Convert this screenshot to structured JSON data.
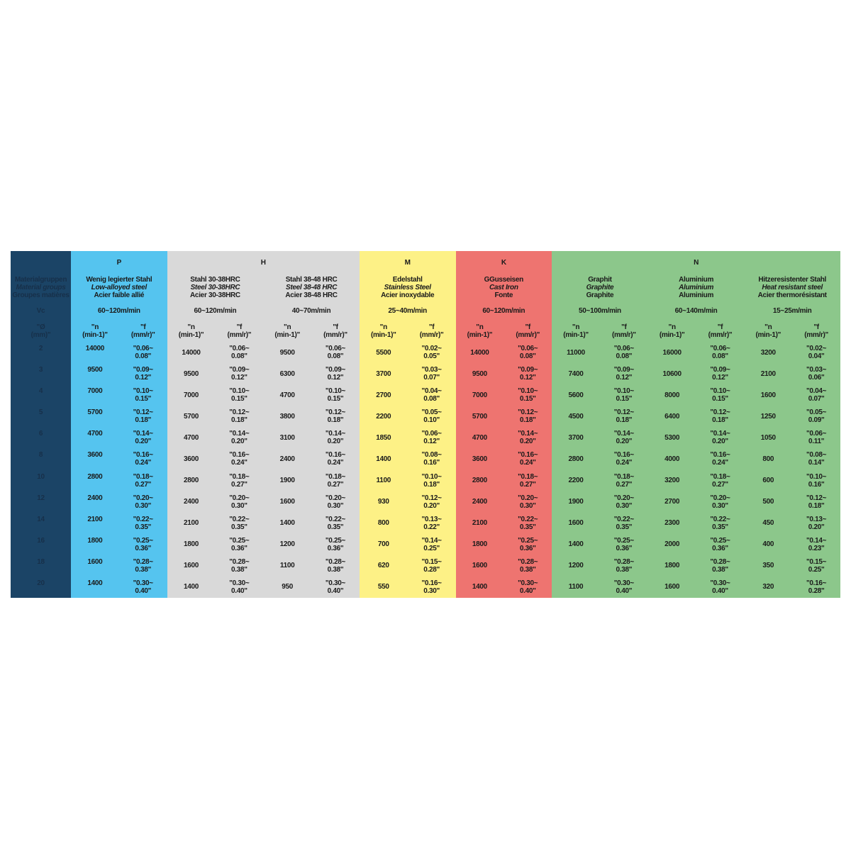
{
  "label_column": {
    "group_labels": [
      "Materialgruppen",
      "Material groups",
      "Groupes matières"
    ],
    "vc_label": "Vc",
    "diameter_label": "\"Ø\n(mm)\"",
    "diameters": [
      "2",
      "3",
      "4",
      "5",
      "6",
      "8",
      "10",
      "12",
      "14",
      "16",
      "18",
      "20"
    ]
  },
  "group_letters": [
    {
      "letter": "P",
      "span": 1
    },
    {
      "letter": "H",
      "span": 2
    },
    {
      "letter": "M",
      "span": 1
    },
    {
      "letter": "K",
      "span": 1
    },
    {
      "letter": "N",
      "span": 3
    }
  ],
  "column_headers": {
    "n": "\"n\n(min-1)\"",
    "f": "\"f\n(mm/r)\""
  },
  "colors": {
    "label": "#1b4466",
    "P": "#55c4ef",
    "H": "#d9d9d9",
    "M": "#fdf186",
    "K": "#ee7470",
    "N": "#8cc78b"
  },
  "materials": [
    {
      "de": "Wenig legierter Stahl",
      "en": "Low-alloyed steel",
      "fr": "Acier faible allié",
      "vc": "60~120m/min",
      "n": [
        "14000",
        "9500",
        "7000",
        "5700",
        "4700",
        "3600",
        "2800",
        "2400",
        "2100",
        "1800",
        "1600",
        "1400"
      ],
      "f": [
        "\"0.06~\n0.08\"",
        "\"0.09~\n0.12\"",
        "\"0.10~\n0.15\"",
        "\"0.12~\n0.18\"",
        "\"0.14~\n0.20\"",
        "\"0.16~\n0.24\"",
        "\"0.18~\n0.27\"",
        "\"0.20~\n0.30\"",
        "\"0.22~\n0.35\"",
        "\"0.25~\n0.36\"",
        "\"0.28~\n0.38\"",
        "\"0.30~\n0.40\""
      ]
    },
    {
      "de": "Stahl 30-38HRC",
      "en": "Steel 30-38HRC",
      "fr": "Acier 30-38HRC",
      "vc": "60~120m/min",
      "n": [
        "14000",
        "9500",
        "7000",
        "5700",
        "4700",
        "3600",
        "2800",
        "2400",
        "2100",
        "1800",
        "1600",
        "1400"
      ],
      "f": [
        "\"0.06~\n0.08\"",
        "\"0.09~\n0.12\"",
        "\"0.10~\n0.15\"",
        "\"0.12~\n0.18\"",
        "\"0.14~\n0.20\"",
        "\"0.16~\n0.24\"",
        "\"0.18~\n0.27\"",
        "\"0.20~\n0.30\"",
        "\"0.22~\n0.35\"",
        "\"0.25~\n0.36\"",
        "\"0.28~\n0.38\"",
        "\"0.30~\n0.40\""
      ]
    },
    {
      "de": "Stahl 38-48 HRC",
      "en": "Steel 38-48 HRC",
      "fr": "Acier 38-48 HRC",
      "vc": "40~70m/min",
      "n": [
        "9500",
        "6300",
        "4700",
        "3800",
        "3100",
        "2400",
        "1900",
        "1600",
        "1400",
        "1200",
        "1100",
        "950"
      ],
      "f": [
        "\"0.06~\n0.08\"",
        "\"0.09~\n0.12\"",
        "\"0.10~\n0.15\"",
        "\"0.12~\n0.18\"",
        "\"0.14~\n0.20\"",
        "\"0.16~\n0.24\"",
        "\"0.18~\n0.27\"",
        "\"0.20~\n0.30\"",
        "\"0.22~\n0.35\"",
        "\"0.25~\n0.36\"",
        "\"0.28~\n0.38\"",
        "\"0.30~\n0.40\""
      ]
    },
    {
      "de": "Edelstahl",
      "en": "Stainless Steel",
      "fr": "Acier inoxydable",
      "vc": "25~40m/min",
      "n": [
        "5500",
        "3700",
        "2700",
        "2200",
        "1850",
        "1400",
        "1100",
        "930",
        "800",
        "700",
        "620",
        "550"
      ],
      "f": [
        "\"0.02~\n0.05\"",
        "\"0.03~\n0.07\"",
        "\"0.04~\n0.08\"",
        "\"0.05~\n0.10\"",
        "\"0.06~\n0.12\"",
        "\"0.08~\n0.16\"",
        "\"0.10~\n0.18\"",
        "\"0.12~\n0.20\"",
        "\"0.13~\n0.22\"",
        "\"0.14~\n0.25\"",
        "\"0.15~\n0.28\"",
        "\"0.16~\n0.30\""
      ]
    },
    {
      "de": "GGusseisen",
      "en": "Cast Iron",
      "fr": "Fonte",
      "vc": "60~120m/min",
      "n": [
        "14000",
        "9500",
        "7000",
        "5700",
        "4700",
        "3600",
        "2800",
        "2400",
        "2100",
        "1800",
        "1600",
        "1400"
      ],
      "f": [
        "\"0.06~\n0.08\"",
        "\"0.09~\n0.12\"",
        "\"0.10~\n0.15\"",
        "\"0.12~\n0.18\"",
        "\"0.14~\n0.20\"",
        "\"0.16~\n0.24\"",
        "\"0.18~\n0.27\"",
        "\"0.20~\n0.30\"",
        "\"0.22~\n0.35\"",
        "\"0.25~\n0.36\"",
        "\"0.28~\n0.38\"",
        "\"0.30~\n0.40\""
      ]
    },
    {
      "de": "Graphit",
      "en": "Graphite",
      "fr": "Graphite",
      "vc": "50~100m/min",
      "n": [
        "11000",
        "7400",
        "5600",
        "4500",
        "3700",
        "2800",
        "2200",
        "1900",
        "1600",
        "1400",
        "1200",
        "1100"
      ],
      "f": [
        "\"0.06~\n0.08\"",
        "\"0.09~\n0.12\"",
        "\"0.10~\n0.15\"",
        "\"0.12~\n0.18\"",
        "\"0.14~\n0.20\"",
        "\"0.16~\n0.24\"",
        "\"0.18~\n0.27\"",
        "\"0.20~\n0.30\"",
        "\"0.22~\n0.35\"",
        "\"0.25~\n0.36\"",
        "\"0.28~\n0.38\"",
        "\"0.30~\n0.40\""
      ]
    },
    {
      "de": "Aluminium",
      "en": "Aluminium",
      "fr": "Aluminium",
      "vc": "60~140m/min",
      "n": [
        "16000",
        "10600",
        "8000",
        "6400",
        "5300",
        "4000",
        "3200",
        "2700",
        "2300",
        "2000",
        "1800",
        "1600"
      ],
      "f": [
        "\"0.06~\n0.08\"",
        "\"0.09~\n0.12\"",
        "\"0.10~\n0.15\"",
        "\"0.12~\n0.18\"",
        "\"0.14~\n0.20\"",
        "\"0.16~\n0.24\"",
        "\"0.18~\n0.27\"",
        "\"0.20~\n0.30\"",
        "\"0.22~\n0.35\"",
        "\"0.25~\n0.36\"",
        "\"0.28~\n0.38\"",
        "\"0.30~\n0.40\""
      ]
    },
    {
      "de": "Hitzeresistenter Stahl",
      "en": "Heat resistant steel",
      "fr": "Acier thermorésistant",
      "vc": "15~25m/min",
      "n": [
        "3200",
        "2100",
        "1600",
        "1250",
        "1050",
        "800",
        "600",
        "500",
        "450",
        "400",
        "350",
        "320"
      ],
      "f": [
        "\"0.02~\n0.04\"",
        "\"0.03~\n0.06\"",
        "\"0.04~\n0.07\"",
        "\"0.05~\n0.09\"",
        "\"0.06~\n0.11\"",
        "\"0.08~\n0.14\"",
        "\"0.10~\n0.16\"",
        "\"0.12~\n0.18\"",
        "\"0.13~\n0.20\"",
        "\"0.14~\n0.23\"",
        "\"0.15~\n0.25\"",
        "\"0.16~\n0.28\""
      ]
    }
  ]
}
